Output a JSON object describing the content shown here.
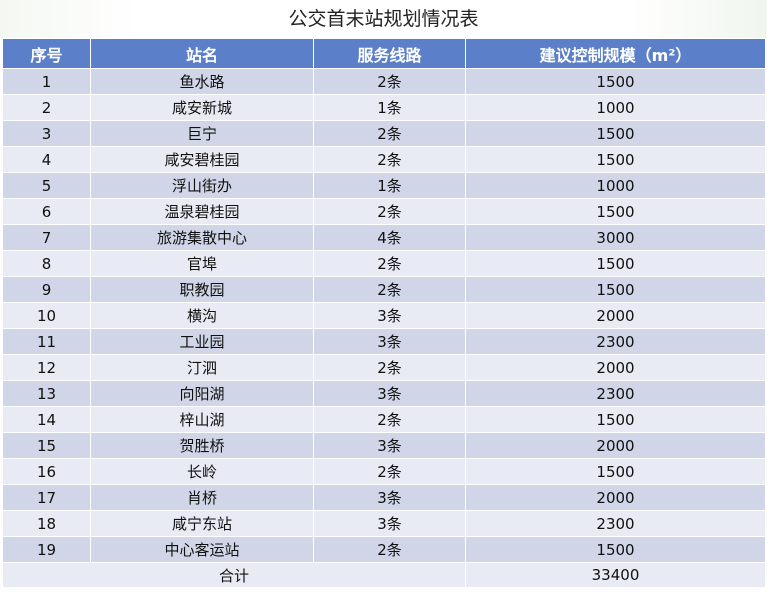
{
  "title": "公交首末站规划情况表",
  "headers": [
    "序号",
    "站名",
    "服务线路",
    "建议控制规模（m²）"
  ],
  "rows": [
    [
      "1",
      "鱼水路",
      "2条",
      "1500"
    ],
    [
      "2",
      "咸安新城",
      "1条",
      "1000"
    ],
    [
      "3",
      "巨宁",
      "2条",
      "1500"
    ],
    [
      "4",
      "咸安碧桂园",
      "2条",
      "1500"
    ],
    [
      "5",
      "浮山街办",
      "1条",
      "1000"
    ],
    [
      "6",
      "温泉碧桂园",
      "2条",
      "1500"
    ],
    [
      "7",
      "旅游集散中心",
      "4条",
      "3000"
    ],
    [
      "8",
      "官埠",
      "2条",
      "1500"
    ],
    [
      "9",
      "职教园",
      "2条",
      "1500"
    ],
    [
      "10",
      "横沟",
      "3条",
      "2000"
    ],
    [
      "11",
      "工业园",
      "3条",
      "2300"
    ],
    [
      "12",
      "汀泗",
      "2条",
      "2000"
    ],
    [
      "13",
      "向阳湖",
      "3条",
      "2300"
    ],
    [
      "14",
      "梓山湖",
      "2条",
      "1500"
    ],
    [
      "15",
      "贺胜桥",
      "3条",
      "2000"
    ],
    [
      "16",
      "长岭",
      "2条",
      "1500"
    ],
    [
      "17",
      "肖桥",
      "3条",
      "2000"
    ],
    [
      "18",
      "咸宁东站",
      "3条",
      "2300"
    ],
    [
      "19",
      "中心客运站",
      "2条",
      "1500"
    ]
  ],
  "total": {
    "label": "合计",
    "value": "33400"
  }
}
